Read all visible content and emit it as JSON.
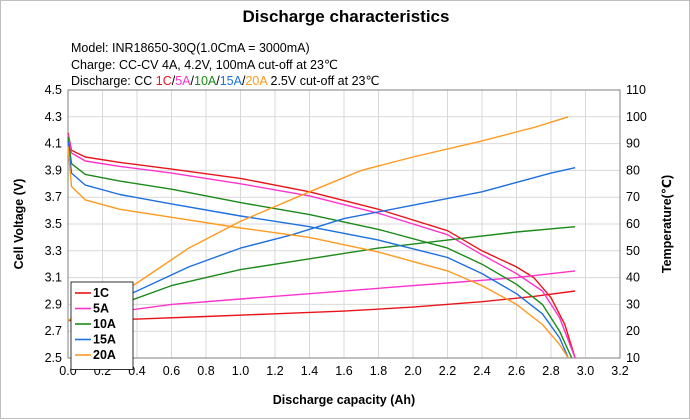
{
  "chart_data": {
    "type": "line",
    "title": "Discharge characteristics",
    "notes": {
      "model": "Model: INR18650-30Q(1.0CmA = 3000mA)",
      "charge": "Charge: CC-CV 4A, 4.2V, 100mA cut-off at 23℃",
      "discharge_prefix": "Discharge: CC ",
      "discharge_rates": [
        {
          "label": "1C",
          "color": "#e8141b"
        },
        {
          "label": "5A",
          "color": "#ff33cc"
        },
        {
          "label": "10A",
          "color": "#1b8a1b"
        },
        {
          "label": "15A",
          "color": "#1e6fe0"
        },
        {
          "label": "20A",
          "color": "#ff9a1f"
        }
      ],
      "discharge_suffix": " 2.5V cut-off at 23℃"
    },
    "xlabel": "Discharge capacity (Ah)",
    "ylabel": "Cell Voltage (V)",
    "y2label": "Temperature(℃)",
    "xlim": [
      0.0,
      3.2
    ],
    "ylim": [
      2.5,
      4.5
    ],
    "y2lim": [
      10,
      110
    ],
    "x_ticks": [
      "0.0",
      "0.2",
      "0.4",
      "0.6",
      "0.8",
      "1.0",
      "1.2",
      "1.4",
      "1.6",
      "1.8",
      "2.0",
      "2.2",
      "2.4",
      "2.6",
      "2.8",
      "3.0",
      "3.2"
    ],
    "y_ticks": [
      "2.5",
      "2.7",
      "2.9",
      "3.1",
      "3.3",
      "3.5",
      "3.7",
      "3.9",
      "4.1",
      "4.3",
      "4.5"
    ],
    "y2_ticks": [
      "10",
      "20",
      "30",
      "40",
      "50",
      "60",
      "70",
      "80",
      "90",
      "100",
      "110"
    ],
    "grid": true,
    "legend_position": "bottom-left",
    "series": [
      {
        "name": "1C",
        "color": "#e8141b",
        "voltage": [
          [
            0.0,
            4.18
          ],
          [
            0.02,
            4.05
          ],
          [
            0.1,
            4.0
          ],
          [
            0.3,
            3.96
          ],
          [
            0.6,
            3.91
          ],
          [
            1.0,
            3.84
          ],
          [
            1.4,
            3.74
          ],
          [
            1.8,
            3.61
          ],
          [
            2.2,
            3.45
          ],
          [
            2.4,
            3.3
          ],
          [
            2.6,
            3.18
          ],
          [
            2.7,
            3.1
          ],
          [
            2.8,
            2.95
          ],
          [
            2.88,
            2.75
          ],
          [
            2.94,
            2.5
          ]
        ],
        "temperature": [
          [
            0.0,
            24
          ],
          [
            0.4,
            24.5
          ],
          [
            0.8,
            25.5
          ],
          [
            1.2,
            26.5
          ],
          [
            1.6,
            27.5
          ],
          [
            2.0,
            29.0
          ],
          [
            2.4,
            31.0
          ],
          [
            2.7,
            33.0
          ],
          [
            2.94,
            35.0
          ]
        ]
      },
      {
        "name": "5A",
        "color": "#ff33cc",
        "voltage": [
          [
            0.0,
            4.17
          ],
          [
            0.02,
            4.03
          ],
          [
            0.1,
            3.97
          ],
          [
            0.3,
            3.93
          ],
          [
            0.6,
            3.88
          ],
          [
            1.0,
            3.8
          ],
          [
            1.4,
            3.71
          ],
          [
            1.8,
            3.58
          ],
          [
            2.2,
            3.42
          ],
          [
            2.4,
            3.27
          ],
          [
            2.6,
            3.13
          ],
          [
            2.75,
            3.0
          ],
          [
            2.85,
            2.8
          ],
          [
            2.94,
            2.5
          ]
        ],
        "temperature": [
          [
            0.0,
            24
          ],
          [
            0.2,
            26.5
          ],
          [
            0.6,
            30.0
          ],
          [
            1.0,
            32.0
          ],
          [
            1.4,
            34.0
          ],
          [
            1.8,
            36.0
          ],
          [
            2.2,
            38.0
          ],
          [
            2.6,
            40.0
          ],
          [
            2.94,
            42.5
          ]
        ]
      },
      {
        "name": "10A",
        "color": "#1b8a1b",
        "voltage": [
          [
            0.0,
            4.15
          ],
          [
            0.02,
            3.95
          ],
          [
            0.1,
            3.87
          ],
          [
            0.3,
            3.82
          ],
          [
            0.6,
            3.76
          ],
          [
            1.0,
            3.66
          ],
          [
            1.4,
            3.57
          ],
          [
            1.8,
            3.46
          ],
          [
            2.2,
            3.32
          ],
          [
            2.4,
            3.2
          ],
          [
            2.6,
            3.05
          ],
          [
            2.75,
            2.9
          ],
          [
            2.85,
            2.7
          ],
          [
            2.92,
            2.5
          ]
        ],
        "temperature": [
          [
            0.0,
            24
          ],
          [
            0.3,
            30.0
          ],
          [
            0.6,
            37.0
          ],
          [
            1.0,
            43.0
          ],
          [
            1.4,
            47.0
          ],
          [
            1.8,
            51.0
          ],
          [
            2.2,
            54.0
          ],
          [
            2.6,
            57.0
          ],
          [
            2.94,
            59.0
          ]
        ]
      },
      {
        "name": "15A",
        "color": "#1e6fe0",
        "voltage": [
          [
            0.0,
            4.12
          ],
          [
            0.02,
            3.88
          ],
          [
            0.1,
            3.79
          ],
          [
            0.3,
            3.72
          ],
          [
            0.6,
            3.65
          ],
          [
            1.0,
            3.56
          ],
          [
            1.4,
            3.48
          ],
          [
            1.8,
            3.38
          ],
          [
            2.2,
            3.25
          ],
          [
            2.4,
            3.13
          ],
          [
            2.6,
            2.98
          ],
          [
            2.75,
            2.83
          ],
          [
            2.85,
            2.65
          ],
          [
            2.9,
            2.5
          ]
        ],
        "temperature": [
          [
            0.0,
            24
          ],
          [
            0.4,
            35.0
          ],
          [
            0.7,
            44.0
          ],
          [
            1.0,
            51.0
          ],
          [
            1.3,
            56.0
          ],
          [
            1.6,
            62.0
          ],
          [
            2.0,
            67.0
          ],
          [
            2.4,
            72.0
          ],
          [
            2.8,
            79.0
          ],
          [
            2.94,
            81.0
          ]
        ]
      },
      {
        "name": "20A",
        "color": "#ff9a1f",
        "voltage": [
          [
            0.0,
            4.08
          ],
          [
            0.02,
            3.78
          ],
          [
            0.1,
            3.68
          ],
          [
            0.3,
            3.61
          ],
          [
            0.6,
            3.55
          ],
          [
            1.0,
            3.47
          ],
          [
            1.4,
            3.4
          ],
          [
            1.8,
            3.29
          ],
          [
            2.2,
            3.15
          ],
          [
            2.4,
            3.04
          ],
          [
            2.6,
            2.9
          ],
          [
            2.75,
            2.75
          ],
          [
            2.85,
            2.6
          ],
          [
            2.9,
            2.5
          ]
        ],
        "temperature": [
          [
            0.0,
            24
          ],
          [
            0.4,
            38.0
          ],
          [
            0.7,
            51.0
          ],
          [
            1.0,
            61.0
          ],
          [
            1.4,
            72.0
          ],
          [
            1.7,
            80.0
          ],
          [
            2.0,
            85.0
          ],
          [
            2.4,
            91.0
          ],
          [
            2.7,
            96.0
          ],
          [
            2.9,
            100.0
          ]
        ]
      }
    ]
  }
}
